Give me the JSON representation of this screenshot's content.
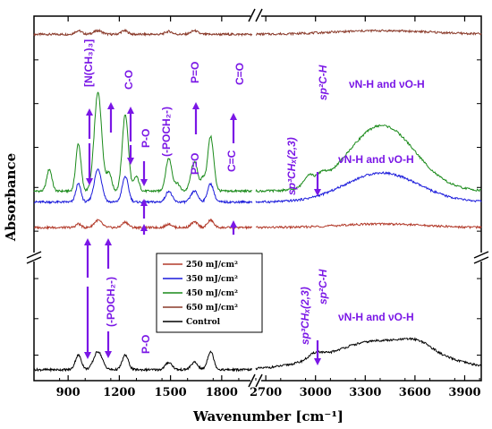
{
  "chart_data": {
    "type": "line",
    "title": "",
    "xlabel": "Wavenumber [cm⁻¹]",
    "ylabel": "Absorbance",
    "x_segments": [
      {
        "range": [
          700,
          2000
        ],
        "ticks": [
          "900",
          "1200",
          "1500",
          "1800"
        ],
        "tick_values": [
          900,
          1200,
          1500,
          1800
        ]
      },
      {
        "range": [
          2640,
          4000
        ],
        "ticks": [
          "2700",
          "3000",
          "3300",
          "3600",
          "3900"
        ],
        "tick_values": [
          2700,
          3000,
          3300,
          3600,
          3900
        ]
      }
    ],
    "y_axis_break": true,
    "grid": false,
    "legend": {
      "placement": "center-left",
      "entries": [
        {
          "label": "250 mJ/cm²",
          "color": "#b23a2a"
        },
        {
          "label": "350 mJ/cm²",
          "color": "#1a1adb"
        },
        {
          "label": "450 mJ/cm²",
          "color": "#1a8a1a"
        },
        {
          "label": "650 mJ/cm²",
          "color": "#8a3a2a"
        },
        {
          "label": "Control",
          "color": "#000000"
        }
      ]
    },
    "series": [
      {
        "name": "650 mJ/cm²",
        "color": "#8a3a2a",
        "offset": 0.95,
        "peaks": [
          [
            960,
            0.01,
            20
          ],
          [
            1075,
            0.01,
            25
          ],
          [
            1230,
            0.01,
            20
          ],
          [
            1490,
            0.008,
            20
          ],
          [
            1640,
            0.01,
            20
          ],
          [
            3400,
            0.01,
            300
          ]
        ]
      },
      {
        "name": "450 mJ/cm²",
        "color": "#1a8a1a",
        "offset": 0.52,
        "peaks": [
          [
            790,
            0.06,
            15
          ],
          [
            960,
            0.13,
            15
          ],
          [
            1075,
            0.27,
            22
          ],
          [
            1140,
            0.05,
            15
          ],
          [
            1235,
            0.21,
            18
          ],
          [
            1300,
            0.04,
            15
          ],
          [
            1490,
            0.09,
            18
          ],
          [
            1540,
            0.02,
            15
          ],
          [
            1640,
            0.08,
            20
          ],
          [
            1690,
            0.03,
            12
          ],
          [
            1735,
            0.15,
            18
          ],
          [
            2960,
            0.03,
            30
          ],
          [
            3040,
            0.02,
            25
          ],
          [
            3400,
            0.18,
            200
          ]
        ]
      },
      {
        "name": "350 mJ/cm²",
        "color": "#1a1adb",
        "offset": 0.49,
        "peaks": [
          [
            960,
            0.05,
            15
          ],
          [
            1075,
            0.09,
            22
          ],
          [
            1235,
            0.07,
            18
          ],
          [
            1490,
            0.03,
            18
          ],
          [
            1640,
            0.03,
            20
          ],
          [
            1735,
            0.05,
            18
          ],
          [
            3400,
            0.08,
            220
          ]
        ]
      },
      {
        "name": "250 mJ/cm²",
        "color": "#b23a2a",
        "offset": 0.42,
        "peaks": [
          [
            960,
            0.01,
            15
          ],
          [
            1075,
            0.02,
            22
          ],
          [
            1235,
            0.015,
            18
          ],
          [
            1490,
            0.01,
            18
          ],
          [
            1640,
            0.015,
            20
          ],
          [
            1735,
            0.02,
            18
          ],
          [
            3400,
            0.01,
            250
          ]
        ]
      },
      {
        "name": "Control",
        "color": "#000000",
        "offset": 0.03,
        "peaks": [
          [
            960,
            0.04,
            18
          ],
          [
            1075,
            0.05,
            25
          ],
          [
            1235,
            0.04,
            18
          ],
          [
            1490,
            0.02,
            20
          ],
          [
            1640,
            0.02,
            20
          ],
          [
            1735,
            0.05,
            18
          ],
          [
            3000,
            0.015,
            40
          ],
          [
            3400,
            0.08,
            300
          ],
          [
            3620,
            0.02,
            80
          ]
        ]
      }
    ],
    "annotations_upper": [
      "[N(CH₃)₃]",
      "C-O",
      "P-O",
      "(-POCH₂-)",
      "P=O",
      "P=O",
      "C=O",
      "C=C",
      "sp²C-H",
      "sp³CHₓ(2,3)",
      "νN-H and νO-H",
      "νN-H and νO-H"
    ],
    "annotations_lower": [
      "(-POCH₂-)",
      "P-O",
      "sp³CHₓ(2,3)",
      "sp²C-H",
      "νN-H and νO-H"
    ]
  }
}
